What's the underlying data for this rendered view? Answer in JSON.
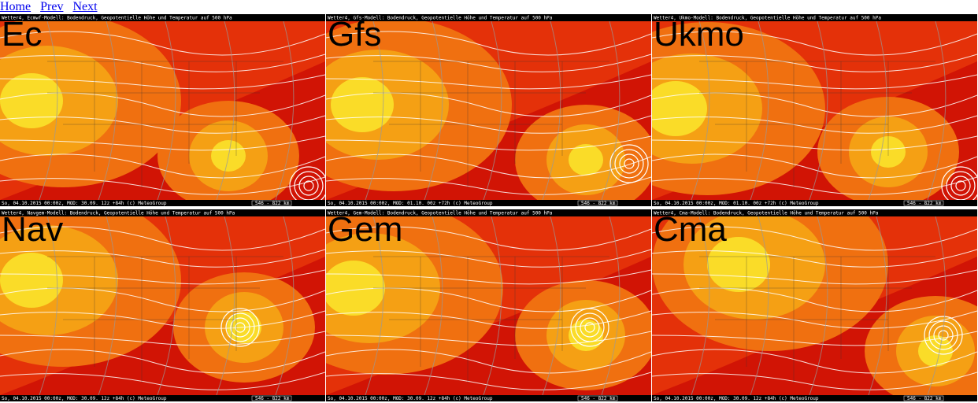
{
  "nav": {
    "links": [
      "Home",
      "Prev",
      "Next"
    ]
  },
  "panels": [
    {
      "label": "Ec",
      "header": "Wetter4, Ecmwf-Modell: Bodendruck, Geopotentielle Höhe und Temperatur auf 500 hPa",
      "footer": "So, 04.10.2015 00:00z, MOD: 30.09. 12z +84h (c) MeteoGroup",
      "scale": "546 - 822 km"
    },
    {
      "label": "Gfs",
      "header": "Wetter4, Gfs-Modell: Bodendruck, Geopotentielle Höhe und Temperatur auf 500 hPa",
      "footer": "So, 04.10.2015 00:00z, MOD: 01.10. 00z +72h (c) MeteoGroup",
      "scale": "546 - 822 km"
    },
    {
      "label": "Ukmo",
      "header": "Wetter4, Ukmo-Modell: Bodendruck, Geopotentielle Höhe und Temperatur auf 500 hPa",
      "footer": "So, 04.10.2015 00:00z, MOD: 01.10. 00z +72h (c) MeteoGroup",
      "scale": "546 - 822 km"
    },
    {
      "label": "Nav",
      "header": "Wetter4, Navgem-Modell: Bodendruck, Geopotentielle Höhe und Temperatur auf 500 hPa",
      "footer": "So, 04.10.2015 00:00z, MOD: 30.09. 12z +84h (c) MeteoGroup",
      "scale": "546 - 822 km"
    },
    {
      "label": "Gem",
      "header": "Wetter4, Gem-Modell: Bodendruck, Geopotentielle Höhe und Temperatur auf 500 hPa",
      "footer": "So, 04.10.2015 00:00z, MOD: 30.09. 12z +84h (c) MeteoGroup",
      "scale": "546 - 822 km"
    },
    {
      "label": "Cma",
      "header": "Wetter4, Cma-Modell: Bodendruck, Geopotentielle Höhe und Temperatur auf 500 hPa",
      "footer": "So, 04.10.2015 00:00z, MOD: 30.09. 12z +84h (c) MeteoGroup",
      "scale": "546 - 822 km"
    }
  ]
}
